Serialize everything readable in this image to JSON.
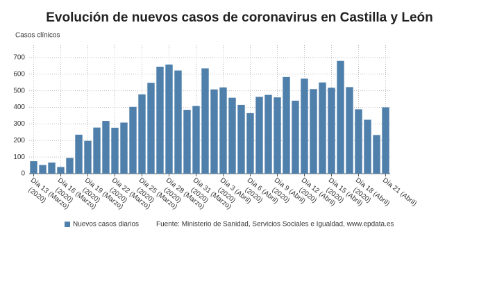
{
  "chart_data": {
    "type": "bar",
    "title": "Evolución de nuevos casos de coronavirus en Castilla y León",
    "y_label": "Casos clínicos",
    "source": "Fuente: Ministerio de Sanidad, Servicios Sociales e Igualdad, www.epdata.es",
    "legend_position": "bottom-left",
    "grid": true,
    "categories": [
      "Día 13 (Marzo) (2020)",
      null,
      null,
      "Día 16 (Marzo) (2020)",
      null,
      null,
      "Día 19 (Marzo) (2020)",
      null,
      null,
      "Día 22 (Marzo) (2020)",
      null,
      null,
      "Día 25 (Marzo) (2020)",
      null,
      null,
      "Día 28 (Marzo) (2020)",
      null,
      null,
      "Día 31 (Marzo) (2020)",
      null,
      null,
      "Día 3 (Abril) (2020)",
      null,
      null,
      "Día 6 (Abril) (2020)",
      null,
      null,
      "Día 9 (Abril) (2020)",
      null,
      null,
      "Día 12 (Abril) (2020)",
      null,
      null,
      "Día 15 (Abril) (2020)",
      null,
      null,
      "Día 18 (Abril) (2020)",
      null,
      null,
      "Día 21 (Abril)"
    ],
    "series": [
      {
        "name": "Nuevos casos diarios",
        "color": "#4f7fab",
        "values": [
          75,
          52,
          67,
          40,
          95,
          235,
          198,
          278,
          318,
          277,
          308,
          403,
          478,
          548,
          645,
          658,
          622,
          385,
          408,
          635,
          508,
          520,
          458,
          415,
          365,
          463,
          475,
          460,
          583,
          440,
          573,
          510,
          550,
          518,
          680,
          522,
          388,
          325,
          233,
          400
        ]
      }
    ],
    "ylim": [
      0,
      775
    ],
    "yticks": [
      0,
      100,
      200,
      300,
      400,
      500,
      600,
      700
    ]
  }
}
